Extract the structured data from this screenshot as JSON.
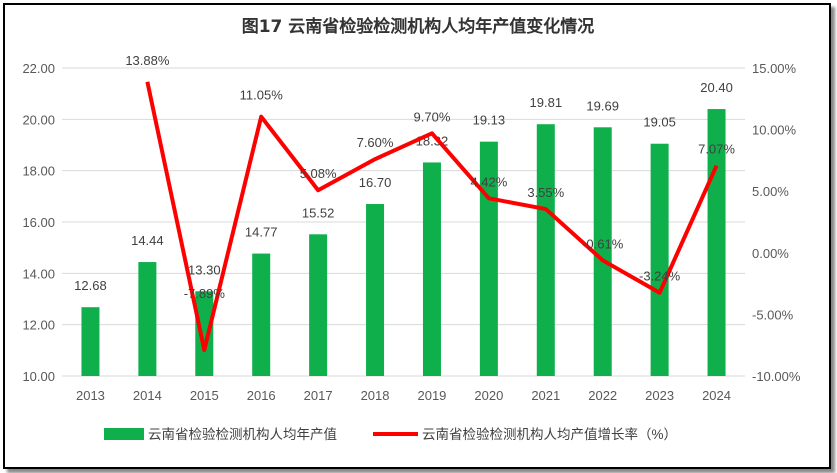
{
  "chart_data": {
    "type": "bar+line",
    "title": "图17  云南省检验检测机构人均年产值变化情况",
    "categories": [
      "2013",
      "2014",
      "2015",
      "2016",
      "2017",
      "2018",
      "2019",
      "2020",
      "2021",
      "2022",
      "2023",
      "2024"
    ],
    "series": [
      {
        "name": "云南省检验检测机构人均年产值",
        "type": "bar",
        "axis": "left",
        "color": "#0fb04b",
        "values": [
          12.68,
          14.44,
          13.3,
          14.77,
          15.52,
          16.7,
          18.32,
          19.13,
          19.81,
          19.69,
          19.05,
          20.4
        ],
        "labels": [
          "12.68",
          "14.44",
          "13.30",
          "14.77",
          "15.52",
          "16.70",
          "18.32",
          "19.13",
          "19.81",
          "19.69",
          "19.05",
          "20.40"
        ]
      },
      {
        "name": "云南省检验检测机构人均产值增长率（%）",
        "type": "line",
        "axis": "right",
        "color": "#ff0000",
        "values": [
          null,
          13.88,
          -7.89,
          11.05,
          5.08,
          7.6,
          9.7,
          4.42,
          3.55,
          -0.61,
          -3.24,
          7.07
        ],
        "labels": [
          "",
          "13.88%",
          "-7.89%",
          "11.05%",
          "5.08%",
          "7.60%",
          "9.70%",
          "4.42%",
          "3.55%",
          "-0.61%",
          "-3.24%",
          "7.07%"
        ]
      }
    ],
    "y_left": {
      "lim": [
        10,
        22
      ],
      "ticks": [
        "10.00",
        "12.00",
        "14.00",
        "16.00",
        "18.00",
        "20.00",
        "22.00"
      ]
    },
    "y_right": {
      "lim": [
        -10,
        15
      ],
      "ticks": [
        "-10.00%",
        "-5.00%",
        "0.00%",
        "5.00%",
        "10.00%",
        "15.00%"
      ]
    },
    "grid": true,
    "legend": "bottom"
  }
}
